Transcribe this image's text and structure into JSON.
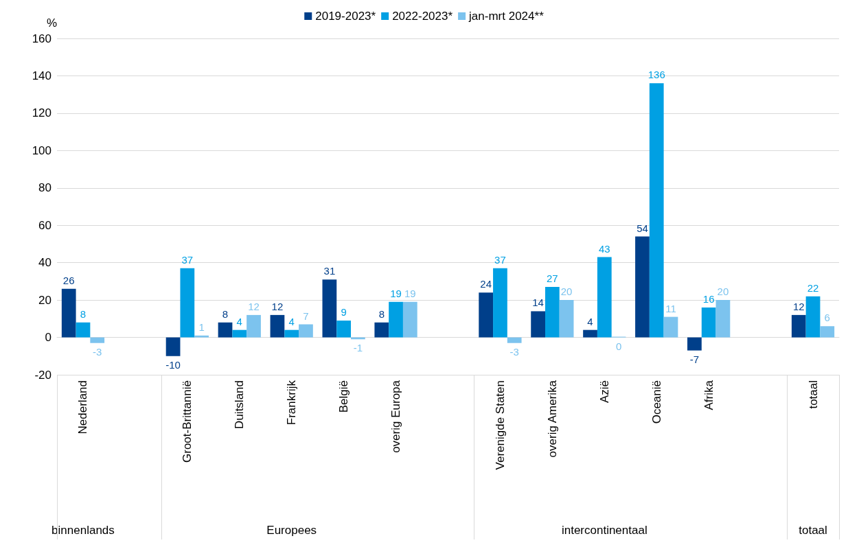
{
  "chart_data": {
    "type": "bar",
    "ylabel": "%",
    "categories": [
      "Nederland",
      null,
      "Groot-Brittannië",
      "Duitsland",
      "Frankrijk",
      "België",
      "overig Europa",
      null,
      "Verenigde Staten",
      "overig Amerika",
      "Azië",
      "Oceanië",
      "Afrika",
      null,
      "totaal"
    ],
    "series": [
      {
        "name": "2019-2023*",
        "color": "#003f8a",
        "values": [
          26,
          null,
          -10,
          8,
          12,
          31,
          8,
          null,
          24,
          14,
          4,
          54,
          -7,
          null,
          12
        ]
      },
      {
        "name": "2022-2023*",
        "color": "#00a0e3",
        "values": [
          8,
          null,
          37,
          4,
          4,
          9,
          19,
          null,
          37,
          27,
          43,
          136,
          16,
          null,
          22
        ]
      },
      {
        "name": "jan-mrt 2024**",
        "color": "#7cc3ee",
        "values": [
          -3,
          null,
          1,
          12,
          7,
          -1,
          19,
          null,
          -3,
          20,
          0,
          11,
          20,
          null,
          6
        ]
      }
    ],
    "annotations": [
      "binnenlands",
      "Europees",
      "intercontinentaal",
      "totaal"
    ],
    "ylim": [
      -20,
      160
    ],
    "yticks": [
      -20,
      0,
      20,
      40,
      60,
      80,
      100,
      120,
      140,
      160
    ],
    "grid": "y",
    "legend": "top",
    "data_labels": true
  }
}
